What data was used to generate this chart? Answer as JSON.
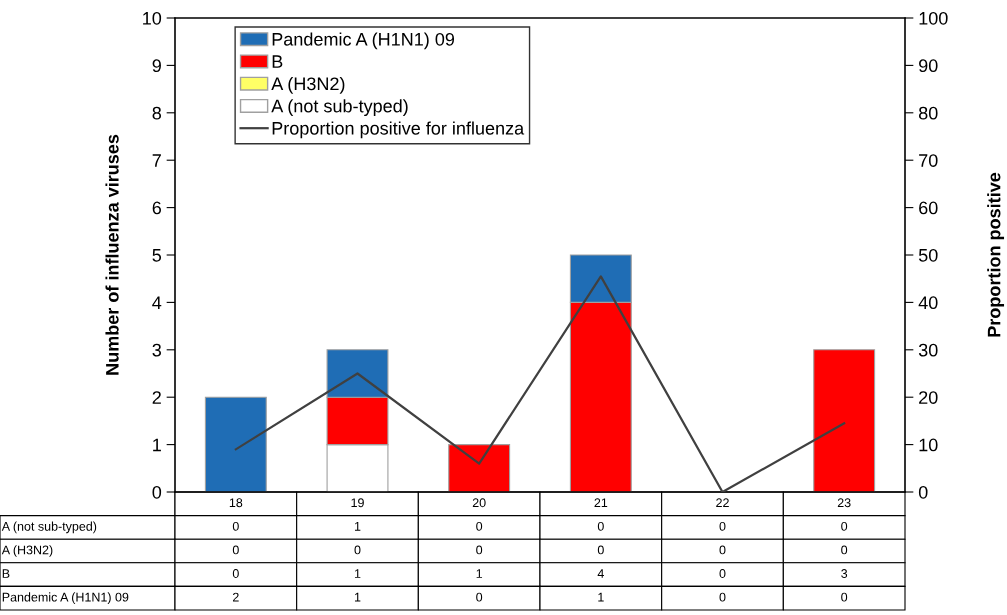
{
  "chart_data": {
    "type": "bar",
    "stacked": true,
    "categories": [
      "18",
      "19",
      "20",
      "21",
      "22",
      "23"
    ],
    "series": [
      {
        "name": "A (not sub-typed)",
        "color": "#ffffff",
        "values": [
          0,
          1,
          0,
          0,
          0,
          0
        ],
        "value_labels": [
          "0",
          "1",
          "0",
          "0",
          "0",
          "0"
        ]
      },
      {
        "name": "A (H3N2)",
        "color": "#ffff66",
        "values": [
          0,
          0,
          0,
          0,
          0,
          0
        ],
        "value_labels": [
          "0",
          "0",
          "0",
          "0",
          "0",
          "0"
        ]
      },
      {
        "name": "B",
        "color": "#ff0000",
        "values": [
          0,
          1,
          1,
          4,
          0,
          3
        ],
        "value_labels": [
          "0",
          "1",
          "1",
          "4",
          "0",
          "3"
        ]
      },
      {
        "name": "Pandemic A (H1N1) 09",
        "color": "#1f6db5",
        "values": [
          2,
          1,
          0,
          1,
          0,
          0
        ],
        "value_labels": [
          "2",
          "1",
          "0",
          "1",
          "0",
          "0"
        ]
      },
      {
        "name": "Proportion positive for influenza",
        "type": "line",
        "axis": "y2",
        "color": "#404040",
        "values": [
          9,
          25,
          6,
          45.5,
          0,
          14.5
        ]
      }
    ],
    "ylabel": "Number of influenza viruses",
    "y2label": "Proportion positive",
    "ylim": [
      0,
      10
    ],
    "yticks": [
      0,
      1,
      2,
      3,
      4,
      5,
      6,
      7,
      8,
      9,
      10
    ],
    "y2lim": [
      0,
      100
    ],
    "y2ticks": [
      0,
      10,
      20,
      30,
      40,
      50,
      60,
      70,
      80,
      90,
      100
    ],
    "legend": "top left",
    "grid": false
  }
}
